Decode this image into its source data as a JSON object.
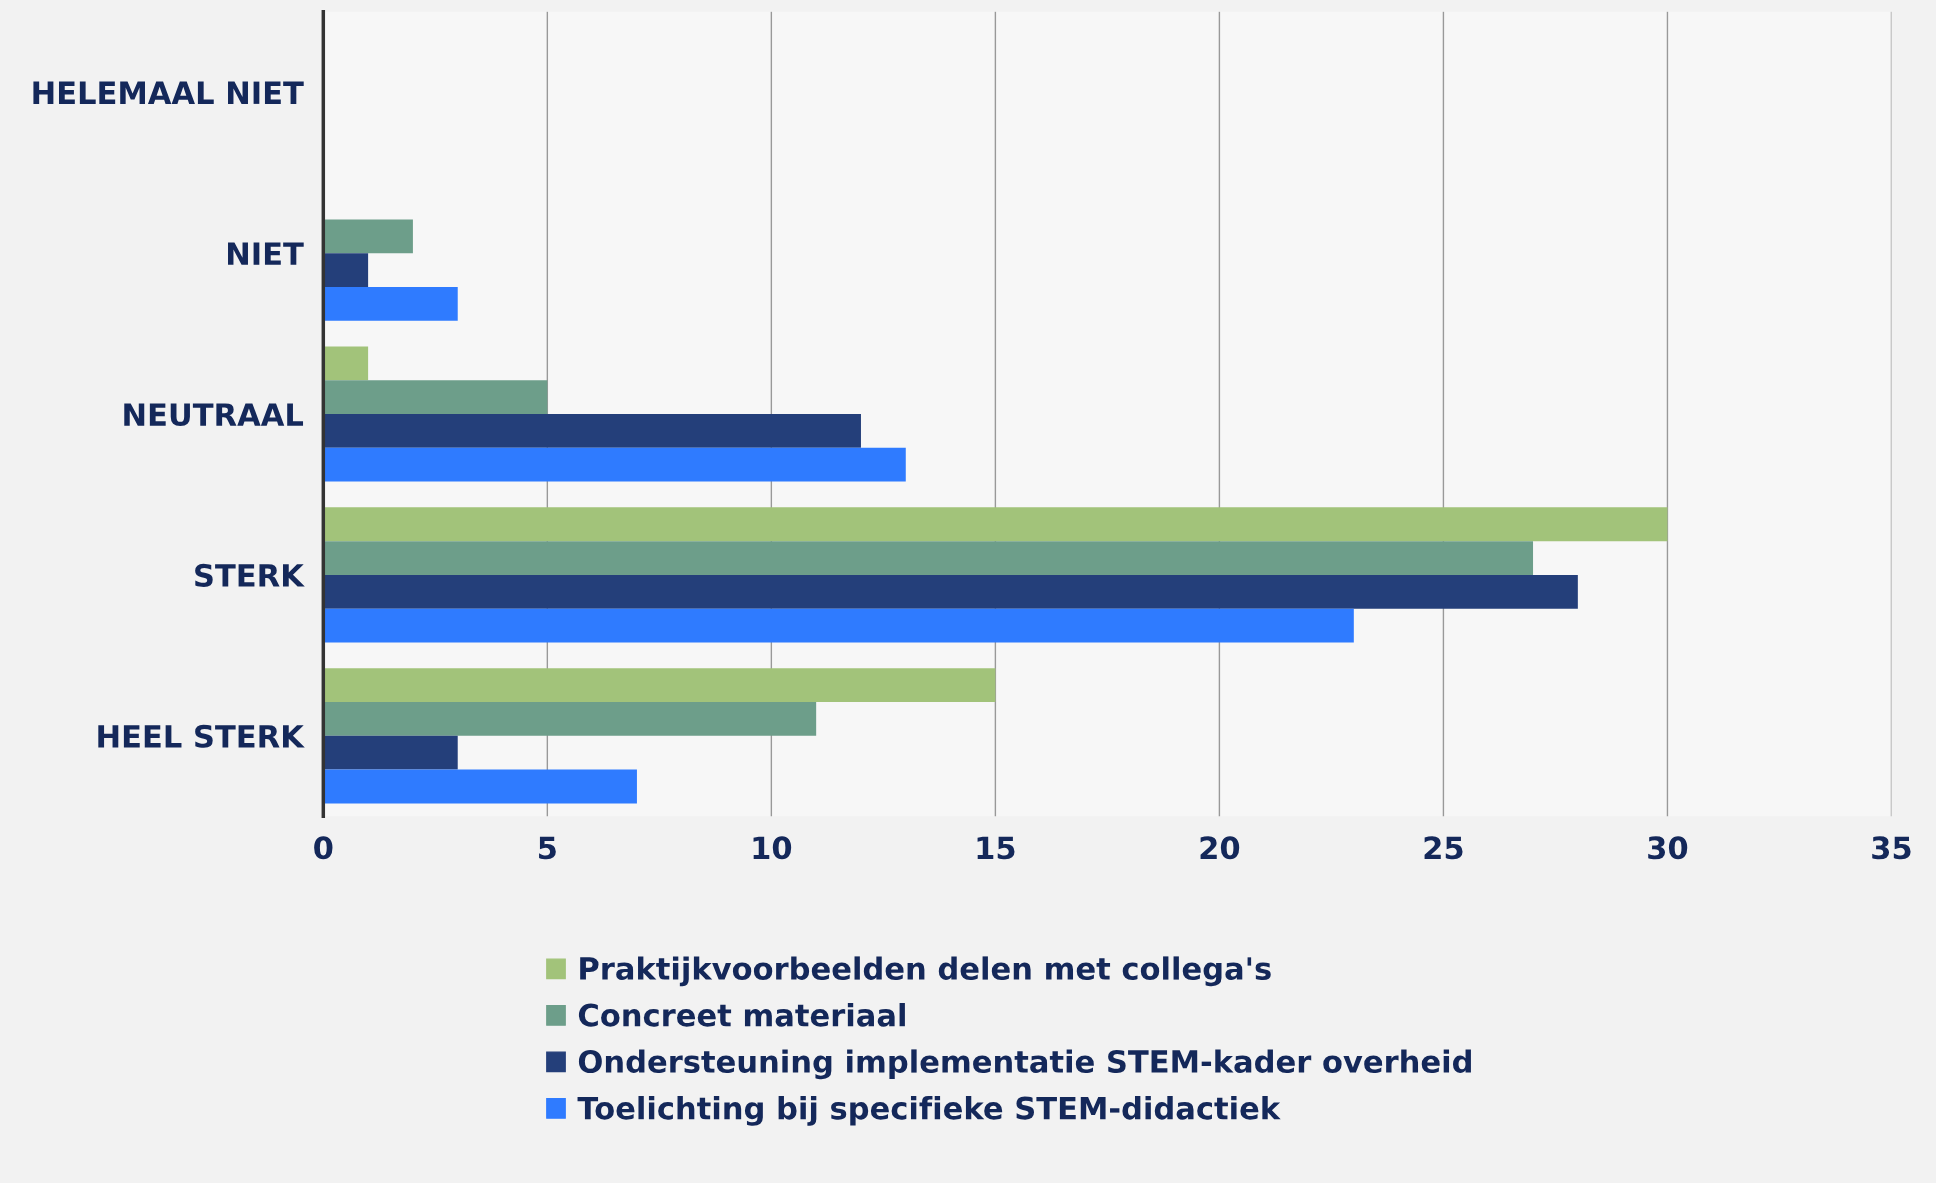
{
  "chart_data": {
    "type": "bar",
    "orientation": "horizontal",
    "categories": [
      "HELEMAAL NIET",
      "NIET",
      "NEUTRAAL",
      "STERK",
      "HEEL STERK"
    ],
    "series": [
      {
        "name": "Praktijkvoorbeelden delen met collega's",
        "color": "#a2c37a",
        "values": [
          0,
          0,
          1,
          30,
          15
        ]
      },
      {
        "name": "Concreet materiaal",
        "color": "#6d9e8a",
        "values": [
          0,
          2,
          5,
          27,
          11
        ]
      },
      {
        "name": "Ondersteuning implementatie STEM-kader overheid",
        "color": "#243f7a",
        "values": [
          0,
          1,
          12,
          28,
          3
        ]
      },
      {
        "name": "Toelichting bij specifieke STEM-didactiek",
        "color": "#2f7bff",
        "values": [
          0,
          3,
          13,
          23,
          7
        ]
      }
    ],
    "xlim": [
      0,
      35
    ],
    "xticks": [
      0,
      5,
      10,
      15,
      20,
      25,
      30,
      35
    ],
    "grid": "x",
    "legend": "bottom"
  }
}
